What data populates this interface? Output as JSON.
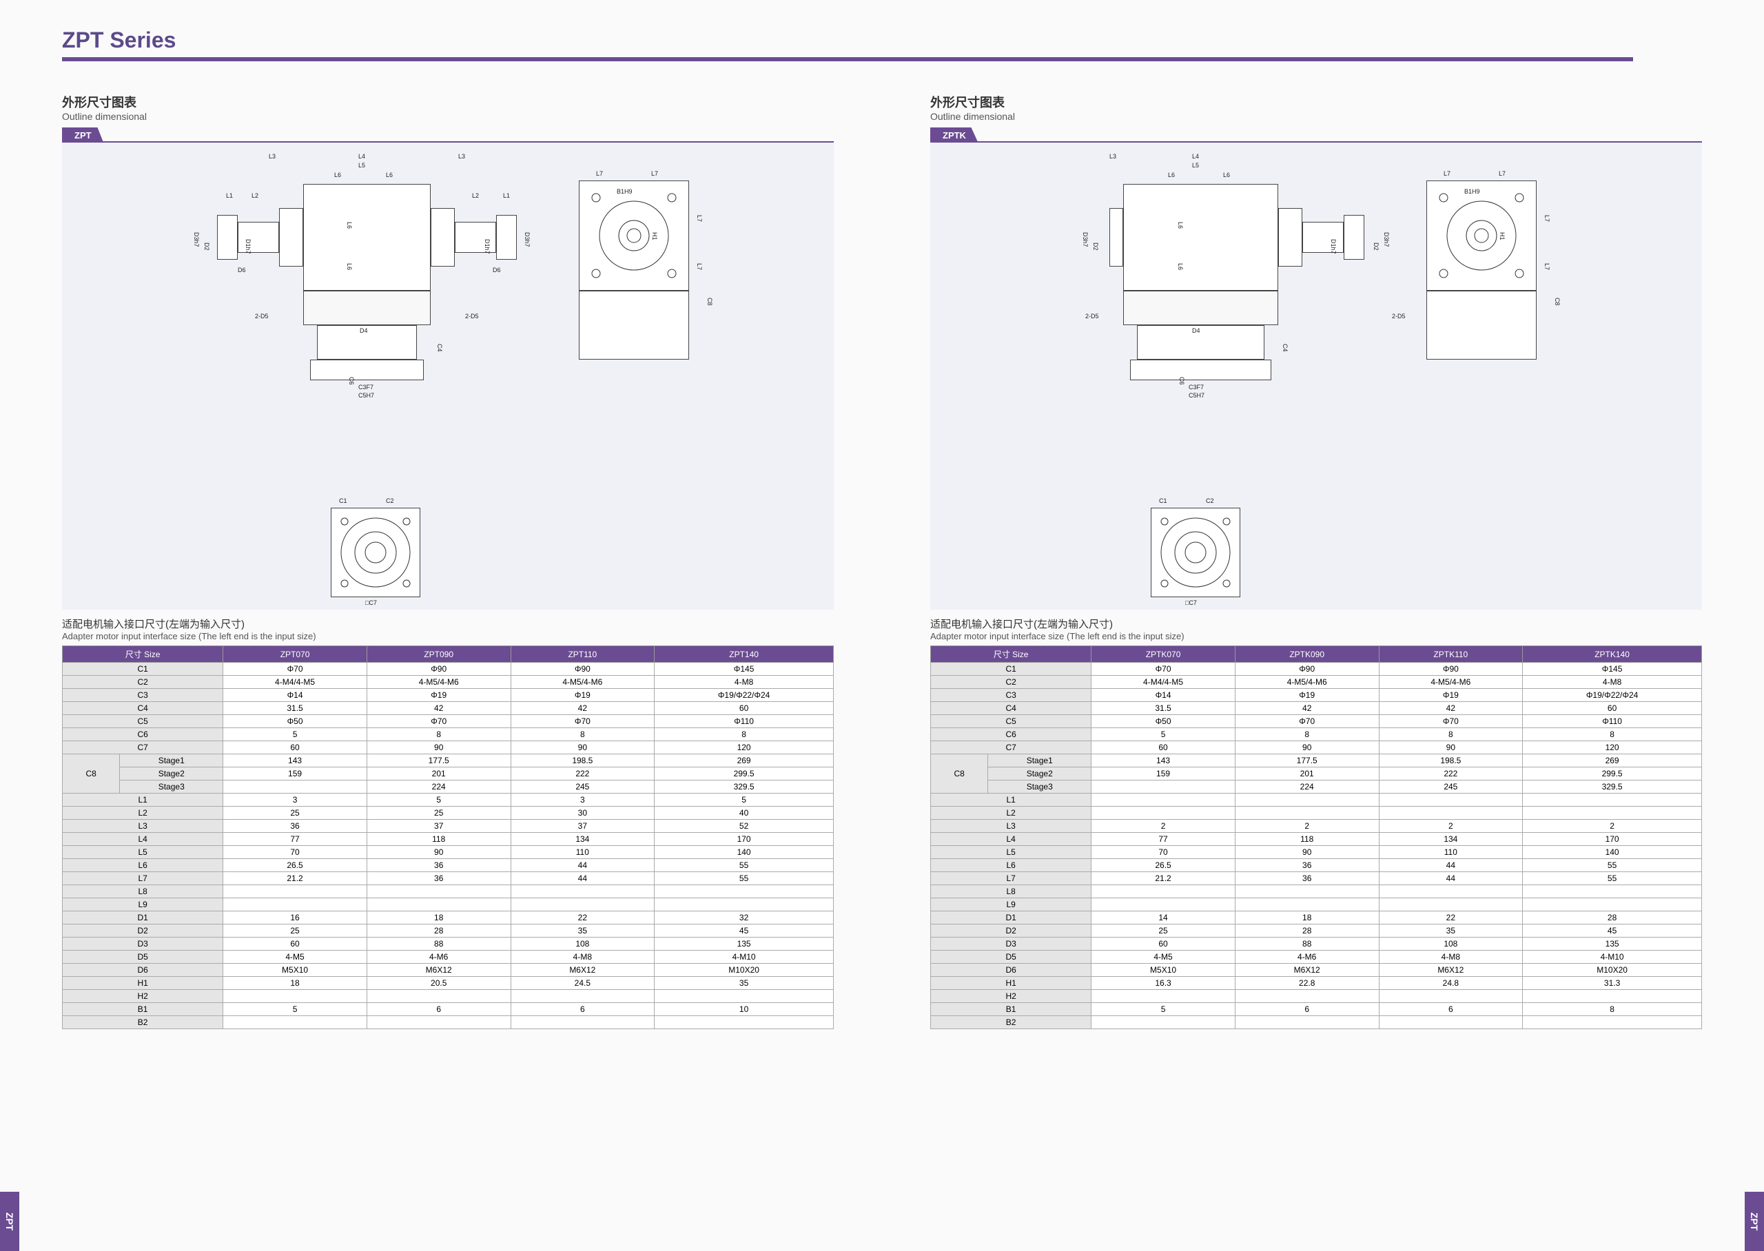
{
  "series_title": "ZPT Series",
  "accent_color": "#6b4c93",
  "diagram_bg": "#f0f1f7",
  "side_tab_text": "ZPT",
  "panels": [
    {
      "key": "zpt",
      "title_cn": "外形尺寸图表",
      "title_en": "Outline dimensional",
      "tag": "ZPT",
      "subtitle_cn": "适配电机输入接口尺寸(左端为输入尺寸)",
      "subtitle_en": "Adapter motor input interface size (The left end is the input size)",
      "columns": [
        "尺寸 Size",
        "ZPT070",
        "ZPT090",
        "ZPT110",
        "ZPT140"
      ],
      "diagram_labels": [
        "L1",
        "L2",
        "L3",
        "L4",
        "L5",
        "L6",
        "L7",
        "L6",
        "D3h7",
        "D2",
        "D1h7",
        "D6",
        "2-D5",
        "D4",
        "C4",
        "C6",
        "C3F7",
        "C5H7",
        "C1",
        "C2",
        "□C7",
        "B1H9",
        "H1",
        "L7",
        "C8"
      ],
      "rows": [
        {
          "label": "C1",
          "vals": [
            "Φ70",
            "Φ90",
            "Φ90",
            "Φ145"
          ]
        },
        {
          "label": "C2",
          "vals": [
            "4-M4/4-M5",
            "4-M5/4-M6",
            "4-M5/4-M6",
            "4-M8"
          ]
        },
        {
          "label": "C3",
          "vals": [
            "Φ14",
            "Φ19",
            "Φ19",
            "Φ19/Φ22/Φ24"
          ]
        },
        {
          "label": "C4",
          "vals": [
            "31.5",
            "42",
            "42",
            "60"
          ]
        },
        {
          "label": "C5",
          "vals": [
            "Φ50",
            "Φ70",
            "Φ70",
            "Φ110"
          ]
        },
        {
          "label": "C6",
          "vals": [
            "5",
            "8",
            "8",
            "8"
          ]
        },
        {
          "label": "C7",
          "vals": [
            "60",
            "90",
            "90",
            "120"
          ]
        }
      ],
      "c8_group": {
        "label": "C8",
        "subrows": [
          {
            "label": "Stage1",
            "vals": [
              "143",
              "177.5",
              "198.5",
              "269"
            ]
          },
          {
            "label": "Stage2",
            "vals": [
              "159",
              "201",
              "222",
              "299.5"
            ]
          },
          {
            "label": "Stage3",
            "vals": [
              "",
              "224",
              "245",
              "329.5"
            ]
          }
        ]
      },
      "rows2": [
        {
          "label": "L1",
          "vals": [
            "3",
            "5",
            "3",
            "5"
          ]
        },
        {
          "label": "L2",
          "vals": [
            "25",
            "25",
            "30",
            "40"
          ]
        },
        {
          "label": "L3",
          "vals": [
            "36",
            "37",
            "37",
            "52"
          ]
        },
        {
          "label": "L4",
          "vals": [
            "77",
            "118",
            "134",
            "170"
          ]
        },
        {
          "label": "L5",
          "vals": [
            "70",
            "90",
            "110",
            "140"
          ]
        },
        {
          "label": "L6",
          "vals": [
            "26.5",
            "36",
            "44",
            "55"
          ]
        },
        {
          "label": "L7",
          "vals": [
            "21.2",
            "36",
            "44",
            "55"
          ]
        },
        {
          "label": "L8",
          "vals": [
            "",
            "",
            "",
            ""
          ]
        },
        {
          "label": "L9",
          "vals": [
            "",
            "",
            "",
            ""
          ]
        },
        {
          "label": "D1",
          "vals": [
            "16",
            "18",
            "22",
            "32"
          ]
        },
        {
          "label": "D2",
          "vals": [
            "25",
            "28",
            "35",
            "45"
          ]
        },
        {
          "label": "D3",
          "vals": [
            "60",
            "88",
            "108",
            "135"
          ]
        },
        {
          "label": "D5",
          "vals": [
            "4-M5",
            "4-M6",
            "4-M8",
            "4-M10"
          ]
        },
        {
          "label": "D6",
          "vals": [
            "M5X10",
            "M6X12",
            "M6X12",
            "M10X20"
          ]
        },
        {
          "label": "H1",
          "vals": [
            "18",
            "20.5",
            "24.5",
            "35"
          ]
        },
        {
          "label": "H2",
          "vals": [
            "",
            "",
            "",
            ""
          ]
        },
        {
          "label": "B1",
          "vals": [
            "5",
            "6",
            "6",
            "10"
          ]
        },
        {
          "label": "B2",
          "vals": [
            "",
            "",
            "",
            ""
          ]
        }
      ]
    },
    {
      "key": "zptk",
      "title_cn": "外形尺寸图表",
      "title_en": "Outline dimensional",
      "tag": "ZPTK",
      "subtitle_cn": "适配电机输入接口尺寸(左端为输入尺寸)",
      "subtitle_en": "Adapter motor input interface size (The left end is the input size)",
      "columns": [
        "尺寸 Size",
        "ZPTK070",
        "ZPTK090",
        "ZPTK110",
        "ZPTK140"
      ],
      "diagram_labels": [
        "L3",
        "L4",
        "L5",
        "L6",
        "L7",
        "D3h7",
        "D2",
        "D1h7",
        "D3h7",
        "2-D5",
        "D4",
        "C4",
        "C6",
        "C3F7",
        "C5H7",
        "C1",
        "C2",
        "□C7",
        "B1H9",
        "H1",
        "L7",
        "C8"
      ],
      "rows": [
        {
          "label": "C1",
          "vals": [
            "Φ70",
            "Φ90",
            "Φ90",
            "Φ145"
          ]
        },
        {
          "label": "C2",
          "vals": [
            "4-M4/4-M5",
            "4-M5/4-M6",
            "4-M5/4-M6",
            "4-M8"
          ]
        },
        {
          "label": "C3",
          "vals": [
            "Φ14",
            "Φ19",
            "Φ19",
            "Φ19/Φ22/Φ24"
          ]
        },
        {
          "label": "C4",
          "vals": [
            "31.5",
            "42",
            "42",
            "60"
          ]
        },
        {
          "label": "C5",
          "vals": [
            "Φ50",
            "Φ70",
            "Φ70",
            "Φ110"
          ]
        },
        {
          "label": "C6",
          "vals": [
            "5",
            "8",
            "8",
            "8"
          ]
        },
        {
          "label": "C7",
          "vals": [
            "60",
            "90",
            "90",
            "120"
          ]
        }
      ],
      "c8_group": {
        "label": "C8",
        "subrows": [
          {
            "label": "Stage1",
            "vals": [
              "143",
              "177.5",
              "198.5",
              "269"
            ]
          },
          {
            "label": "Stage2",
            "vals": [
              "159",
              "201",
              "222",
              "299.5"
            ]
          },
          {
            "label": "Stage3",
            "vals": [
              "",
              "224",
              "245",
              "329.5"
            ]
          }
        ]
      },
      "rows2": [
        {
          "label": "L1",
          "vals": [
            "",
            "",
            "",
            ""
          ]
        },
        {
          "label": "L2",
          "vals": [
            "",
            "",
            "",
            ""
          ]
        },
        {
          "label": "L3",
          "vals": [
            "2",
            "2",
            "2",
            "2"
          ]
        },
        {
          "label": "L4",
          "vals": [
            "77",
            "118",
            "134",
            "170"
          ]
        },
        {
          "label": "L5",
          "vals": [
            "70",
            "90",
            "110",
            "140"
          ]
        },
        {
          "label": "L6",
          "vals": [
            "26.5",
            "36",
            "44",
            "55"
          ]
        },
        {
          "label": "L7",
          "vals": [
            "21.2",
            "36",
            "44",
            "55"
          ]
        },
        {
          "label": "L8",
          "vals": [
            "",
            "",
            "",
            ""
          ]
        },
        {
          "label": "L9",
          "vals": [
            "",
            "",
            "",
            ""
          ]
        },
        {
          "label": "D1",
          "vals": [
            "14",
            "18",
            "22",
            "28"
          ]
        },
        {
          "label": "D2",
          "vals": [
            "25",
            "28",
            "35",
            "45"
          ]
        },
        {
          "label": "D3",
          "vals": [
            "60",
            "88",
            "108",
            "135"
          ]
        },
        {
          "label": "D5",
          "vals": [
            "4-M5",
            "4-M6",
            "4-M8",
            "4-M10"
          ]
        },
        {
          "label": "D6",
          "vals": [
            "M5X10",
            "M6X12",
            "M6X12",
            "M10X20"
          ]
        },
        {
          "label": "H1",
          "vals": [
            "16.3",
            "22.8",
            "24.8",
            "31.3"
          ]
        },
        {
          "label": "H2",
          "vals": [
            "",
            "",
            "",
            ""
          ]
        },
        {
          "label": "B1",
          "vals": [
            "5",
            "6",
            "6",
            "8"
          ]
        },
        {
          "label": "B2",
          "vals": [
            "",
            "",
            "",
            ""
          ]
        }
      ]
    }
  ]
}
